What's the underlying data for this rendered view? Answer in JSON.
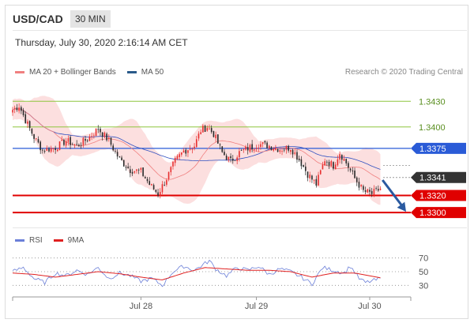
{
  "header": {
    "symbol": "USD/CAD",
    "timeframe": "30 MIN",
    "datetime": "Thursday, July 30, 2020 2:16:14 AM CET"
  },
  "legend": {
    "items": [
      {
        "label": "MA 20 + Bollinger Bands",
        "color": "#f08080"
      },
      {
        "label": "MA 50",
        "color": "#2a5a8a"
      }
    ],
    "credit": "Research © 2020 Trading Central"
  },
  "rsi_legend": {
    "items": [
      {
        "label": "RSI",
        "color": "#6b7fd8"
      },
      {
        "label": "9MA",
        "color": "#e02020"
      }
    ]
  },
  "colors": {
    "up_candle": "#e83030",
    "down_candle": "#2a2a2a",
    "bollinger_fill": "#fbd4d4",
    "ma20": "#f08080",
    "ma50": "#3050c0",
    "green_level": "#8dc63f",
    "blue_level": "#2a5bd7",
    "red_level": "#e00000",
    "arrow": "#2a5aa0"
  },
  "chart_data": [
    {
      "type": "candlestick",
      "title": "USD/CAD",
      "ylim": [
        1.329,
        1.3445
      ],
      "x_tick_labels": [
        "Jul 28",
        "Jul 29",
        "Jul 30"
      ],
      "x_ticks": [
        60,
        114,
        167
      ],
      "x_range": [
        0,
        184
      ],
      "levels": [
        {
          "value": 1.343,
          "label": "1.3430",
          "kind": "green"
        },
        {
          "value": 1.34,
          "label": "1.3400",
          "kind": "green"
        },
        {
          "value": 1.3375,
          "label": "1.3375",
          "kind": "blue"
        },
        {
          "value": 1.3341,
          "label": "1.3341",
          "kind": "current"
        },
        {
          "value": 1.332,
          "label": "1.3320",
          "kind": "red"
        },
        {
          "value": 1.33,
          "label": "1.3300",
          "kind": "red"
        }
      ],
      "close_anchors": [
        [
          0,
          1.342
        ],
        [
          3,
          1.3425
        ],
        [
          6,
          1.3408
        ],
        [
          10,
          1.3388
        ],
        [
          14,
          1.3373
        ],
        [
          20,
          1.3376
        ],
        [
          25,
          1.3384
        ],
        [
          30,
          1.3378
        ],
        [
          35,
          1.3386
        ],
        [
          40,
          1.3398
        ],
        [
          45,
          1.3384
        ],
        [
          50,
          1.3362
        ],
        [
          55,
          1.335
        ],
        [
          60,
          1.3348
        ],
        [
          64,
          1.3333
        ],
        [
          68,
          1.3322
        ],
        [
          72,
          1.334
        ],
        [
          76,
          1.336
        ],
        [
          80,
          1.3372
        ],
        [
          85,
          1.3378
        ],
        [
          88,
          1.3396
        ],
        [
          91,
          1.34
        ],
        [
          94,
          1.3392
        ],
        [
          98,
          1.337
        ],
        [
          102,
          1.336
        ],
        [
          106,
          1.337
        ],
        [
          110,
          1.3375
        ],
        [
          115,
          1.338
        ],
        [
          120,
          1.3378
        ],
        [
          125,
          1.3374
        ],
        [
          130,
          1.3376
        ],
        [
          134,
          1.3362
        ],
        [
          138,
          1.3345
        ],
        [
          142,
          1.3333
        ],
        [
          146,
          1.3362
        ],
        [
          150,
          1.3355
        ],
        [
          153,
          1.337
        ],
        [
          156,
          1.3358
        ],
        [
          160,
          1.334
        ],
        [
          164,
          1.3325
        ],
        [
          168,
          1.3322
        ],
        [
          172,
          1.3328
        ]
      ],
      "forecast_arrow": {
        "from": [
          173,
          1.3338
        ],
        "to": [
          184,
          1.3301
        ]
      }
    },
    {
      "type": "line",
      "title": "RSI",
      "ylim": [
        20,
        80
      ],
      "y_tick_labels": [
        "70",
        "50",
        "30"
      ],
      "y_ticks": [
        70,
        50,
        30
      ],
      "series": [
        {
          "name": "RSI",
          "anchors": [
            [
              0,
              50
            ],
            [
              5,
              56
            ],
            [
              10,
              40
            ],
            [
              15,
              34
            ],
            [
              20,
              48
            ],
            [
              25,
              44
            ],
            [
              30,
              52
            ],
            [
              35,
              46
            ],
            [
              40,
              56
            ],
            [
              45,
              40
            ],
            [
              50,
              48
            ],
            [
              55,
              44
            ],
            [
              60,
              36
            ],
            [
              65,
              40
            ],
            [
              70,
              30
            ],
            [
              75,
              50
            ],
            [
              80,
              58
            ],
            [
              85,
              52
            ],
            [
              90,
              62
            ],
            [
              92,
              66
            ],
            [
              95,
              54
            ],
            [
              100,
              44
            ],
            [
              105,
              56
            ],
            [
              110,
              52
            ],
            [
              115,
              58
            ],
            [
              120,
              46
            ],
            [
              125,
              54
            ],
            [
              130,
              50
            ],
            [
              135,
              42
            ],
            [
              140,
              32
            ],
            [
              145,
              56
            ],
            [
              150,
              52
            ],
            [
              155,
              48
            ],
            [
              158,
              58
            ],
            [
              162,
              40
            ],
            [
              165,
              34
            ],
            [
              170,
              38
            ],
            [
              174,
              42
            ]
          ]
        },
        {
          "name": "9MA",
          "anchors": [
            [
              0,
              48
            ],
            [
              10,
              46
            ],
            [
              20,
              42
            ],
            [
              30,
              46
            ],
            [
              40,
              50
            ],
            [
              50,
              47
            ],
            [
              60,
              42
            ],
            [
              70,
              38
            ],
            [
              80,
              48
            ],
            [
              90,
              56
            ],
            [
              100,
              54
            ],
            [
              110,
              52
            ],
            [
              120,
              52
            ],
            [
              130,
              50
            ],
            [
              140,
              42
            ],
            [
              150,
              48
            ],
            [
              160,
              48
            ],
            [
              174,
              40
            ]
          ]
        }
      ]
    }
  ]
}
